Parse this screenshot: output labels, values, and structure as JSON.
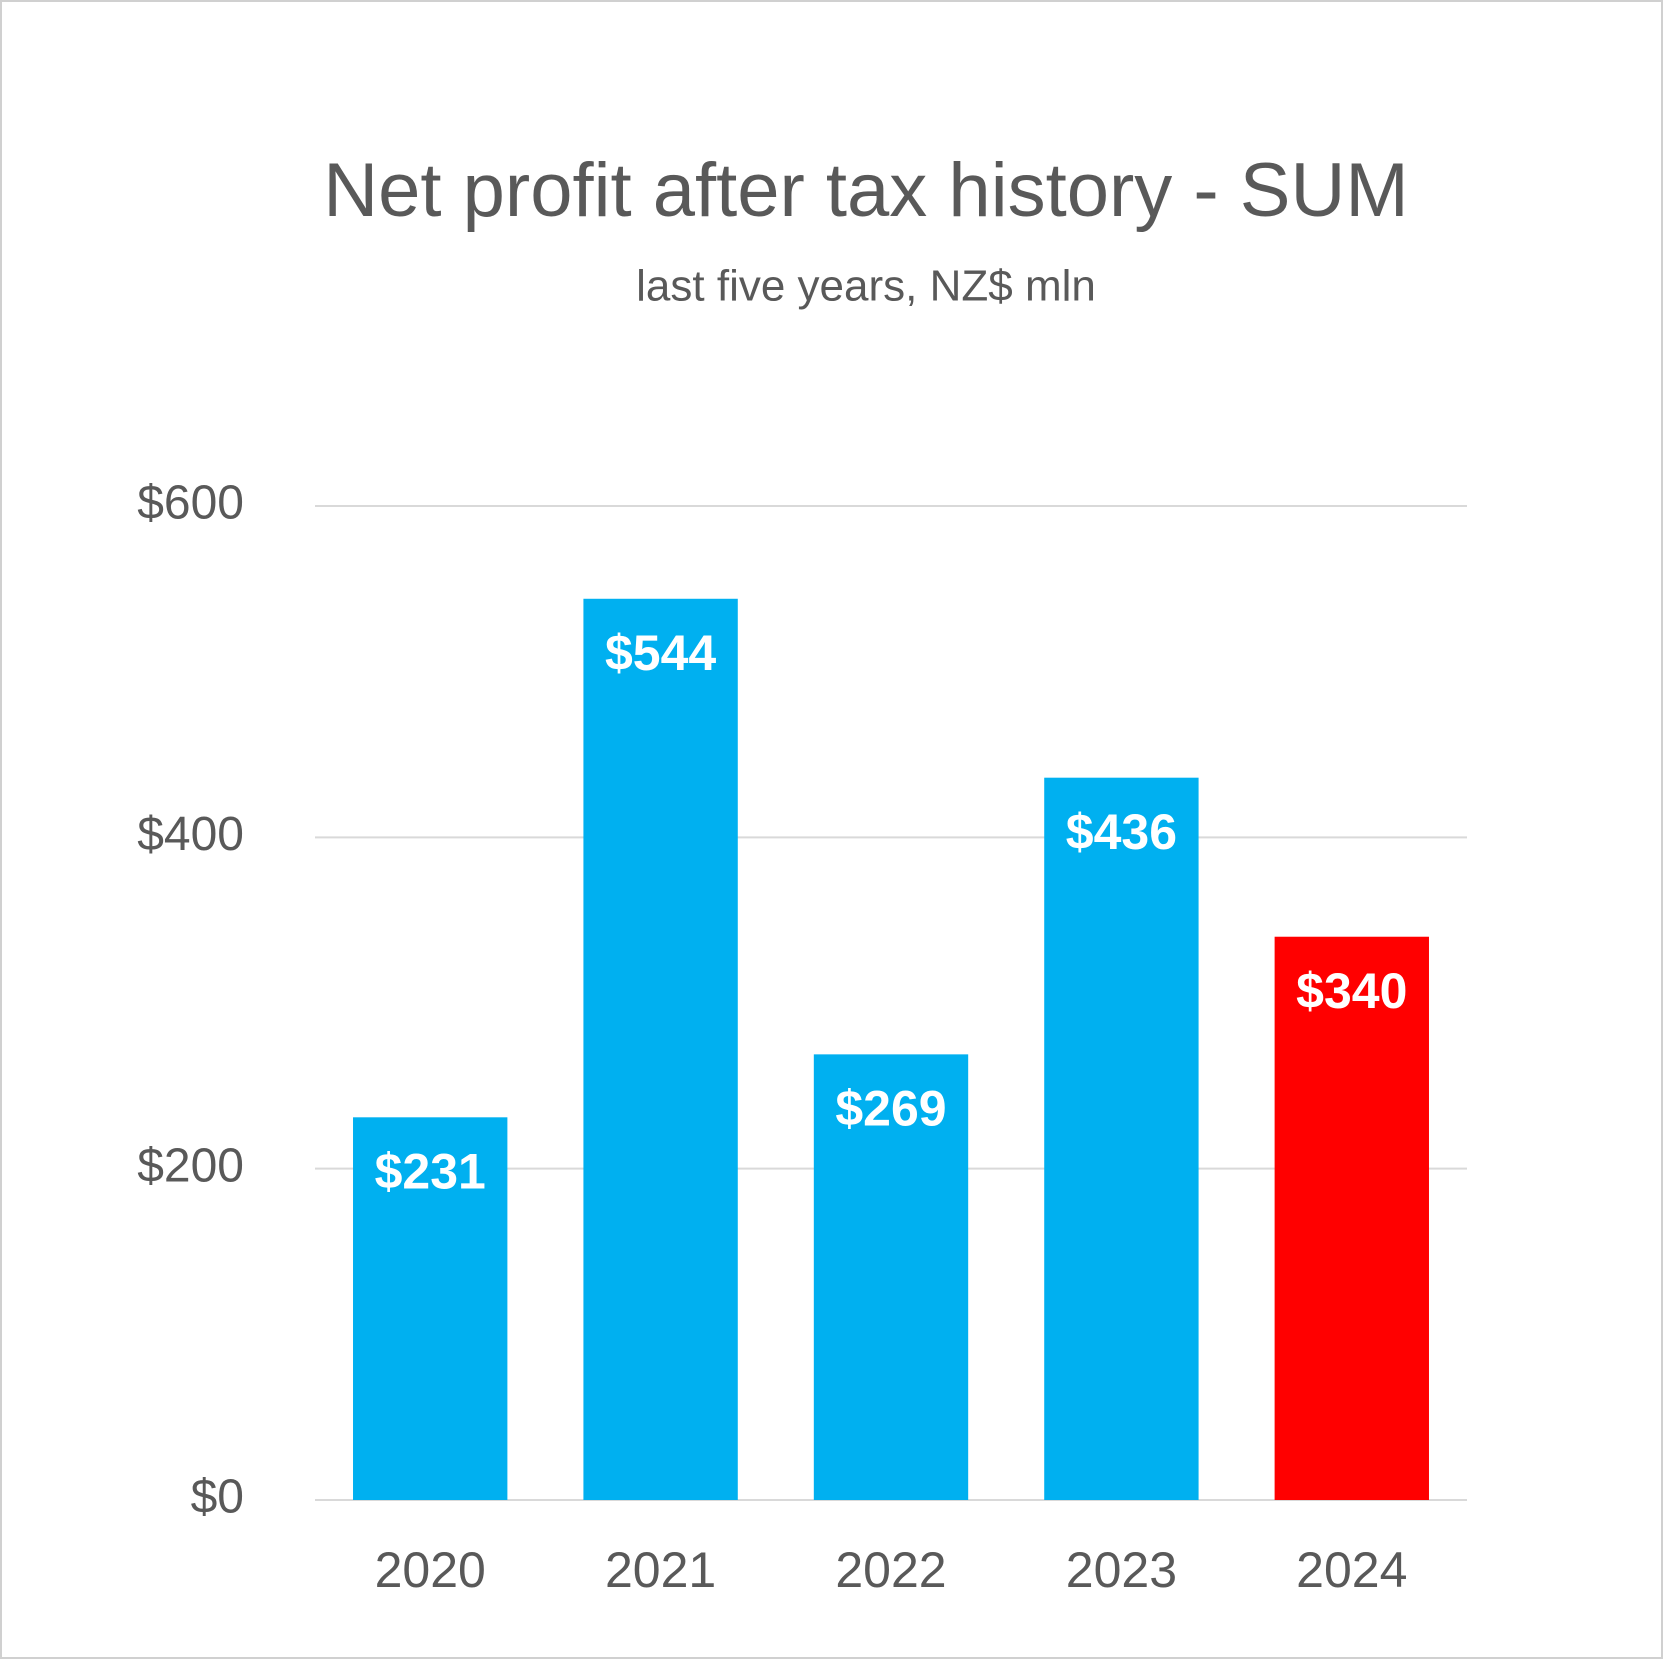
{
  "chart_data": {
    "type": "bar",
    "title": "Net profit after tax history - SUM",
    "subtitle": "last five years, NZ$ mln",
    "categories": [
      "2020",
      "2021",
      "2022",
      "2023",
      "2024"
    ],
    "values": [
      231,
      544,
      269,
      436,
      340
    ],
    "value_labels": [
      "$231",
      "$544",
      "$269",
      "$436",
      "$340"
    ],
    "colors": [
      "#00b0f0",
      "#00b0f0",
      "#00b0f0",
      "#00b0f0",
      "#ff0000"
    ],
    "ylim": [
      0,
      600
    ],
    "yticks": [
      {
        "value": 0,
        "label": "$0"
      },
      {
        "value": 200,
        "label": "$200"
      },
      {
        "value": 400,
        "label": "$400"
      },
      {
        "value": 600,
        "label": "$600"
      }
    ],
    "grid": true
  }
}
